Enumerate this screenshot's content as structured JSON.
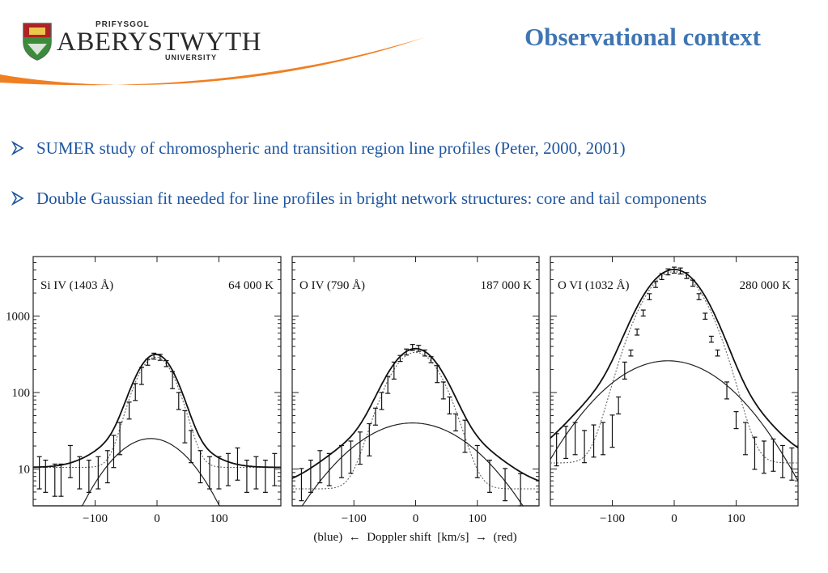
{
  "header": {
    "logo": {
      "prifysgol": "PRIFYSGOL",
      "name": "ABERYSTWYTH",
      "university": "UNIVERSITY",
      "crest_icon": "university-crest",
      "swoosh_color": "#f07f22"
    },
    "title": "Observational context",
    "title_color": "#3f75b2"
  },
  "bullets": [
    {
      "icon": "arrow-bullet",
      "text": "SUMER study of chromospheric and transition region line profiles  (Peter, 2000, 2001)"
    },
    {
      "icon": "arrow-bullet",
      "text": "Double Gaussian fit needed for line profiles in bright network structures: core and tail components"
    }
  ],
  "bullet_color": "#1f56a0",
  "chart_common": {
    "xlabel": "(blue)  ←  Doppler shift  [km/s]  →  (red)",
    "yscale": "log",
    "xlim": [
      -200,
      200
    ],
    "ylim": [
      3.3,
      6000
    ],
    "xticks": [
      -100,
      0,
      100
    ],
    "yticks": [
      10,
      100,
      1000
    ]
  },
  "chart_data": [
    {
      "type": "line",
      "title": "Si IV (1403 Å)",
      "temperature": "64 000 K",
      "yticks_shown": true,
      "series": [
        {
          "values": {
            "background": 10.5,
            "core_amp": 280,
            "core_center": -2,
            "core_sigma": 26,
            "tail_amp": 25,
            "tail_center": -10,
            "tail_sigma": 55
          }
        }
      ],
      "observed": {
        "x": [
          -190,
          -180,
          -165,
          -155,
          -140,
          -125,
          -110,
          -95,
          -80,
          -70,
          -60,
          -45,
          -35,
          -25,
          -15,
          -5,
          5,
          15,
          25,
          35,
          45,
          55,
          70,
          85,
          100,
          115,
          130,
          145,
          160,
          175,
          190
        ],
        "y": [
          10,
          9,
          8,
          8,
          14,
          10,
          9,
          10,
          12,
          19,
          28,
          60,
          105,
          170,
          250,
          300,
          290,
          240,
          150,
          80,
          40,
          22,
          12,
          10,
          10,
          11,
          13,
          9,
          10,
          9,
          11
        ]
      }
    },
    {
      "type": "line",
      "title": "O IV (790 Å)",
      "temperature": "187 000 K",
      "yticks_shown": false,
      "series": [
        {
          "values": {
            "background": 5.5,
            "core_amp": 330,
            "core_center": 0,
            "core_sigma": 34,
            "tail_amp": 40,
            "tail_center": -5,
            "tail_sigma": 80
          }
        }
      ],
      "observed": {
        "x": [
          -185,
          -170,
          -155,
          -140,
          -120,
          -105,
          -90,
          -75,
          -65,
          -55,
          -45,
          -35,
          -25,
          -15,
          -5,
          5,
          15,
          25,
          35,
          45,
          55,
          65,
          80,
          100,
          120,
          145,
          170
        ],
        "y": [
          7,
          9,
          12,
          11,
          14,
          16,
          21,
          27,
          50,
          80,
          130,
          200,
          280,
          340,
          390,
          380,
          330,
          270,
          180,
          110,
          70,
          42,
          30,
          14,
          9,
          7,
          6
        ]
      }
    },
    {
      "type": "line",
      "title": "O VI (1032 Å)",
      "temperature": "280 000 K",
      "yticks_shown": false,
      "series": [
        {
          "values": {
            "background": 12,
            "core_amp": 3800,
            "core_center": 0,
            "core_sigma": 38,
            "tail_amp": 260,
            "tail_center": -10,
            "tail_sigma": 78
          }
        }
      ],
      "observed": {
        "x": [
          -190,
          -175,
          -160,
          -145,
          -130,
          -115,
          -100,
          -90,
          -80,
          -70,
          -60,
          -50,
          -40,
          -30,
          -20,
          -10,
          0,
          10,
          20,
          30,
          40,
          50,
          60,
          70,
          85,
          100,
          115,
          130,
          145,
          160,
          175,
          190
        ],
        "y": [
          20,
          25,
          28,
          22,
          26,
          28,
          35,
          70,
          200,
          330,
          620,
          1100,
          1800,
          2600,
          3300,
          3800,
          4000,
          3900,
          3400,
          2700,
          1800,
          1000,
          500,
          330,
          110,
          45,
          28,
          18,
          16,
          17,
          14,
          13
        ]
      }
    }
  ]
}
